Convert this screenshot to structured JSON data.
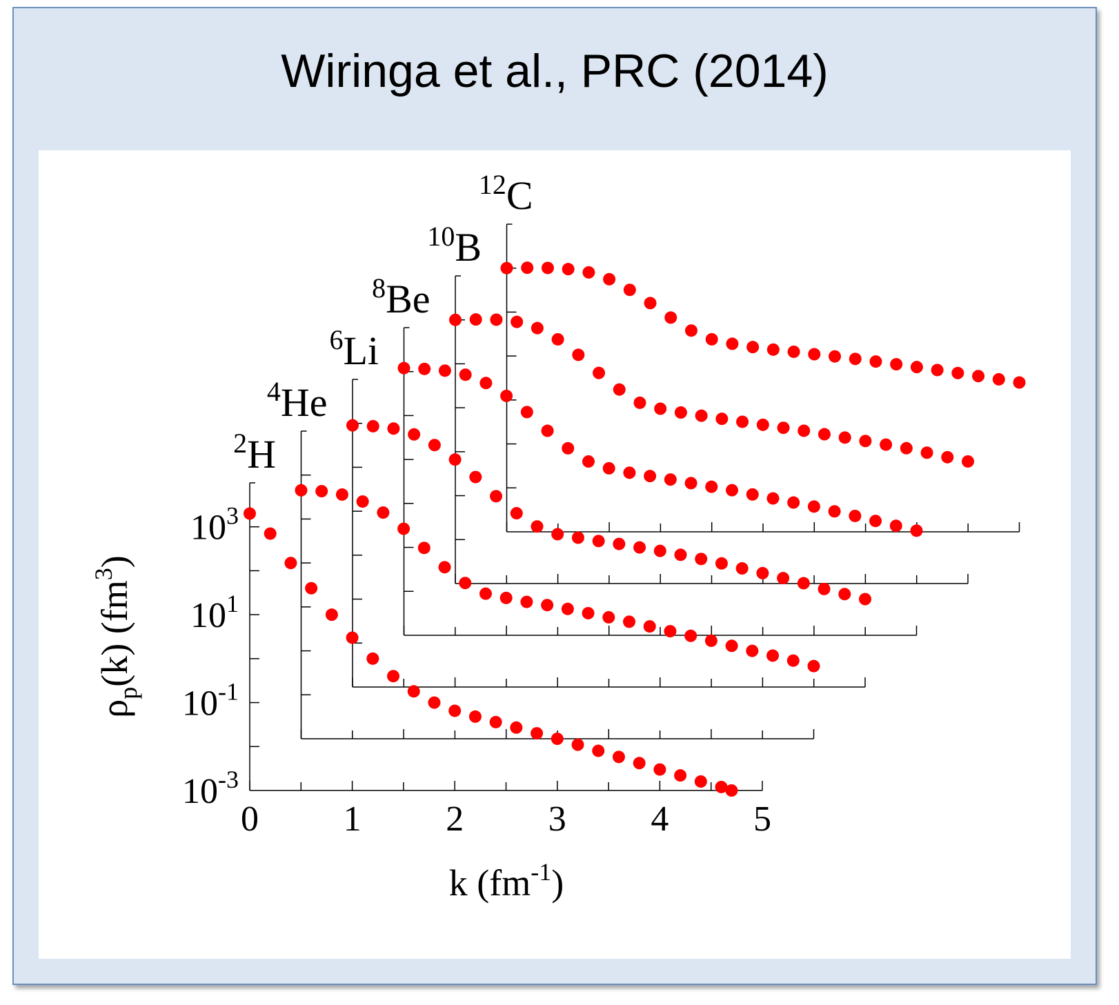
{
  "title": "Wiringa et al., PRC (2014)",
  "chart_data": {
    "type": "scatter",
    "yscale": "log",
    "xlabel": "k (fm-1)",
    "ylabel": "ρp(k) (fm3)",
    "x_ticks": [
      "0",
      "1",
      "2",
      "3",
      "4",
      "5"
    ],
    "y_ticks": [
      "10-3",
      "10-1",
      "101",
      "103"
    ],
    "xlim": [
      0,
      5
    ],
    "ylim": [
      0.001,
      10000
    ],
    "marker_color": "#ff0000",
    "axis_color": "#000000",
    "series": [
      {
        "name": "2H",
        "x": [
          0,
          0.2,
          0.4,
          0.6,
          0.8,
          1.0,
          1.2,
          1.4,
          1.6,
          1.8,
          2.0,
          2.2,
          2.4,
          2.6,
          2.8,
          3.0,
          3.2,
          3.4,
          3.6,
          3.8,
          4.0,
          4.2,
          4.4,
          4.6,
          4.7
        ],
        "y": [
          2000,
          700,
          150,
          40,
          10,
          3,
          1,
          0.4,
          0.18,
          0.1,
          0.065,
          0.048,
          0.036,
          0.027,
          0.02,
          0.015,
          0.011,
          0.008,
          0.0058,
          0.0042,
          0.003,
          0.0022,
          0.0016,
          0.0012,
          0.001
        ]
      },
      {
        "name": "4He",
        "x": [
          0,
          0.2,
          0.4,
          0.6,
          0.8,
          1.0,
          1.2,
          1.4,
          1.6,
          1.8,
          2.0,
          2.2,
          2.4,
          2.6,
          2.8,
          3.0,
          3.2,
          3.4,
          3.6,
          3.8,
          4.0,
          4.2,
          4.4,
          4.6,
          4.8,
          5.0
        ],
        "y": [
          450,
          430,
          360,
          250,
          140,
          60,
          22,
          8,
          3.5,
          2,
          1.6,
          1.3,
          1.1,
          0.9,
          0.72,
          0.58,
          0.46,
          0.36,
          0.28,
          0.22,
          0.17,
          0.13,
          0.1,
          0.078,
          0.06,
          0.045
        ]
      },
      {
        "name": "6Li",
        "x": [
          0,
          0.2,
          0.4,
          0.6,
          0.8,
          1.0,
          1.2,
          1.4,
          1.6,
          1.8,
          2.0,
          2.2,
          2.4,
          2.6,
          2.8,
          3.0,
          3.2,
          3.4,
          3.6,
          3.8,
          4.0,
          4.2,
          4.4,
          4.6,
          4.8,
          5.0
        ],
        "y": [
          900,
          860,
          760,
          560,
          320,
          150,
          60,
          22,
          9,
          4.5,
          3,
          2.5,
          2.1,
          1.8,
          1.5,
          1.25,
          1.02,
          0.82,
          0.65,
          0.5,
          0.39,
          0.3,
          0.23,
          0.17,
          0.13,
          0.1
        ]
      },
      {
        "name": "8Be",
        "x": [
          0,
          0.2,
          0.4,
          0.6,
          0.8,
          1.0,
          1.2,
          1.4,
          1.6,
          1.8,
          2.0,
          2.2,
          2.4,
          2.6,
          2.8,
          3.0,
          3.2,
          3.4,
          3.6,
          3.8,
          4.0,
          4.2,
          4.4,
          4.6,
          4.8,
          5.0
        ],
        "y": [
          1200,
          1150,
          1050,
          850,
          550,
          280,
          120,
          45,
          18,
          9,
          6.3,
          5,
          4.2,
          3.5,
          2.9,
          2.4,
          2,
          1.6,
          1.3,
          1.05,
          0.85,
          0.66,
          0.52,
          0.4,
          0.31,
          0.24
        ]
      },
      {
        "name": "10B",
        "x": [
          0,
          0.2,
          0.4,
          0.6,
          0.8,
          1.0,
          1.2,
          1.4,
          1.6,
          1.8,
          2.0,
          2.2,
          2.4,
          2.6,
          2.8,
          3.0,
          3.2,
          3.4,
          3.6,
          3.8,
          4.0,
          4.2,
          4.4,
          4.6,
          4.8,
          5.0
        ],
        "y": [
          1000,
          1020,
          1010,
          900,
          650,
          360,
          160,
          62,
          26,
          13,
          9.5,
          7.8,
          6.6,
          5.6,
          4.8,
          4.1,
          3.5,
          3,
          2.5,
          2.1,
          1.75,
          1.45,
          1.2,
          0.95,
          0.75,
          0.6
        ]
      },
      {
        "name": "12C",
        "x": [
          0,
          0.2,
          0.4,
          0.6,
          0.8,
          1.0,
          1.2,
          1.4,
          1.6,
          1.8,
          2.0,
          2.2,
          2.4,
          2.6,
          2.8,
          3.0,
          3.2,
          3.4,
          3.6,
          3.8,
          4.0,
          4.2,
          4.4,
          4.6,
          4.8,
          5.0
        ],
        "y": [
          1000,
          1020,
          1010,
          950,
          800,
          560,
          320,
          160,
          75,
          38,
          24,
          19,
          16,
          14,
          12.5,
          11,
          9.8,
          8.6,
          7.5,
          6.5,
          5.6,
          4.8,
          4.1,
          3.5,
          2.95,
          2.5
        ]
      }
    ]
  }
}
